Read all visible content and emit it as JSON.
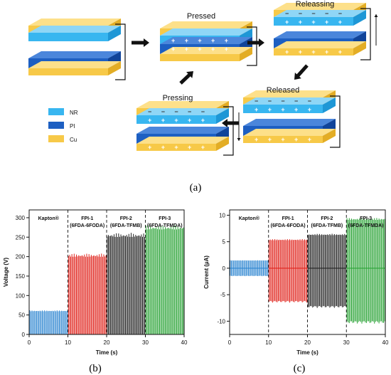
{
  "panel_a": {
    "label": "(a)",
    "stages": [
      {
        "name": "initial",
        "label": ""
      },
      {
        "name": "pressed",
        "label": "Pressed"
      },
      {
        "name": "releasing",
        "label": "Releassing"
      },
      {
        "name": "released",
        "label": "Released"
      },
      {
        "name": "pressing",
        "label": "Pressing"
      }
    ],
    "legend": [
      {
        "label": "NR",
        "color": "#38b6f0"
      },
      {
        "label": "PI",
        "color": "#1d5fc2"
      },
      {
        "label": "Cu",
        "color": "#f7c948"
      }
    ]
  },
  "panel_b": {
    "label": "(b)"
  },
  "panel_c": {
    "label": "(c)"
  },
  "chart_data": [
    {
      "type": "line",
      "ylabel": "Voltage (V)",
      "xlabel": "Time (s)",
      "xlim": [
        0,
        40
      ],
      "ylim": [
        0,
        320
      ],
      "xticks": [
        "0",
        "10",
        "20",
        "30",
        "40"
      ],
      "yticks": [
        "0",
        "50",
        "100",
        "150",
        "200",
        "250",
        "300"
      ],
      "regions": [
        {
          "label": "Kapton®",
          "sublabel": "",
          "x": [
            0,
            10
          ],
          "peak": 62,
          "color": "#2e86d1"
        },
        {
          "label": "FPI-1",
          "sublabel": "(6FDA-6FODA)",
          "x": [
            10,
            20
          ],
          "peak": 208,
          "color": "#e0231c"
        },
        {
          "label": "FPI-2",
          "sublabel": "(6FDA-TFMB)",
          "x": [
            20,
            30
          ],
          "peak": 261,
          "color": "#222222"
        },
        {
          "label": "FPI-3",
          "sublabel": "(6FDA-TFMDA)",
          "x": [
            30,
            40
          ],
          "peak": 281,
          "color": "#2aa336"
        }
      ]
    },
    {
      "type": "line",
      "ylabel": "Current (µA)",
      "xlabel": "Time (s)",
      "xlim": [
        0,
        40
      ],
      "ylim": [
        -12.5,
        11
      ],
      "xticks": [
        "0",
        "10",
        "20",
        "30",
        "40"
      ],
      "yticks": [
        "-10",
        "-5",
        "0",
        "5",
        "10"
      ],
      "regions": [
        {
          "label": "Kapton®",
          "sublabel": "",
          "x": [
            0,
            10
          ],
          "max": 1.5,
          "min": -1.5,
          "color": "#2e86d1"
        },
        {
          "label": "FPI-1",
          "sublabel": "(6FDA-6FODA)",
          "x": [
            10,
            20
          ],
          "max": 5.5,
          "min": -6.5,
          "color": "#e0231c"
        },
        {
          "label": "FPI-2",
          "sublabel": "(6FDA-TFMB)",
          "x": [
            20,
            30
          ],
          "max": 6.5,
          "min": -7.5,
          "color": "#222222"
        },
        {
          "label": "FPI-3",
          "sublabel": "(6FDA-TFMDA)",
          "x": [
            30,
            40
          ],
          "max": 9.5,
          "min": -10.5,
          "color": "#2aa336"
        }
      ]
    }
  ]
}
